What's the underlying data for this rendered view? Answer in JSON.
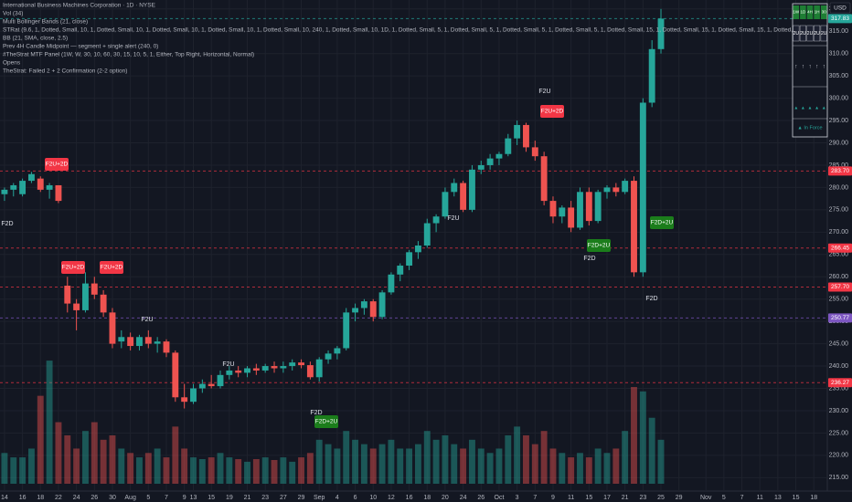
{
  "chart_data": {
    "type": "candlestick",
    "title": "International Business Machines Corporation · 1D · NYSE",
    "legend_lines": [
      "Vol (34)",
      "Multi Bollinger Bands (21, close)",
      "STRat (9.6, 1, Dotted, Small, 10, 1, Dotted, Small, 10, 1, Dotted, Small, 10, 1, Dotted, Small, 10, 1, Dotted, Small, 10, 240, 1, Dotted, Small, 10, 1D, 1, Dotted, Small, 5, 1, Dotted, Small, 5, 1, Dotted, Small, 5, 1, Dotted, Small, 5, 1, Dotted, Small, 15, 1, Dotted, Small, 15, 1, Dotted, Small, 15, 1, Dotted, Small, 5)",
      "BB (21, SMA, close, 2.5)",
      "Prev 4H Candle Midpoint — segment + single alert (240, 0)",
      "#TheStrat MTF Panel (1W, W, 30, 10, 60, 30, 15, 10, 5, 1, Either, Top Right, Horizontal, Normal)",
      "Opens",
      "TheStrat: Failed 2 + 2 Confirmation (2-2 option)"
    ],
    "currency": "USD",
    "x": [
      0,
      1,
      2,
      3,
      4,
      5,
      6,
      7,
      8,
      9,
      10,
      11,
      12,
      13,
      14,
      15,
      16,
      17,
      18,
      19,
      20,
      21,
      22,
      23,
      24,
      25,
      26,
      27,
      28,
      29,
      30,
      31,
      32,
      33,
      34,
      35,
      36,
      37,
      38,
      39,
      40,
      41,
      42,
      43,
      44,
      45,
      46,
      47,
      48,
      49,
      50,
      51,
      52,
      53,
      54,
      55,
      56,
      57,
      58,
      59,
      60,
      61,
      62,
      63,
      64,
      65,
      66,
      67,
      68,
      69,
      70,
      71,
      72,
      73
    ],
    "open": [
      278.5,
      279.5,
      278.5,
      281.5,
      282,
      279.5,
      280.5,
      258,
      254,
      252.5,
      258.5,
      256,
      252,
      245.5,
      246.5,
      244.5,
      246.5,
      245,
      245.5,
      243,
      233,
      232,
      235,
      236,
      235.5,
      238,
      239,
      238.5,
      239.5,
      239,
      240,
      239.5,
      240,
      240.8,
      240.2,
      237.5,
      241.5,
      242.8,
      244,
      252,
      253,
      254.5,
      251,
      256.5,
      260.5,
      262.5,
      265.5,
      267,
      272,
      273.5,
      279,
      281,
      275,
      284,
      285,
      286.5,
      287.5,
      291,
      294,
      289,
      287,
      277,
      273.5,
      275.5,
      271,
      279,
      272.5,
      279,
      280,
      279,
      281.5,
      261,
      299,
      311
    ],
    "high": [
      280,
      281,
      282,
      283.5,
      282.5,
      281,
      280.5,
      260,
      255,
      261,
      260,
      257,
      253,
      248,
      247.5,
      247,
      248,
      246.5,
      246,
      243.5,
      236,
      236,
      237,
      238,
      239,
      240,
      240,
      240,
      240.5,
      240.5,
      241,
      241,
      241.5,
      241.5,
      241,
      242,
      243.5,
      244.5,
      253,
      254,
      255,
      255,
      257,
      261,
      263,
      266,
      268,
      273,
      274,
      280,
      282,
      281.5,
      285,
      286,
      287.5,
      288,
      292,
      295,
      294.5,
      290.5,
      288,
      278,
      276,
      277,
      280,
      280,
      279.5,
      280.5,
      281,
      282,
      282.5,
      300,
      313,
      320
    ],
    "low": [
      277,
      278,
      278,
      281,
      279,
      277.5,
      276.5,
      252,
      248,
      252,
      255,
      251,
      244,
      244,
      243.5,
      243.5,
      244,
      243,
      242,
      232,
      230.5,
      231.5,
      234,
      235,
      235,
      237,
      237.5,
      237.5,
      238,
      238.5,
      238.5,
      238.5,
      239,
      239.5,
      237,
      236.5,
      240.5,
      241.5,
      243.5,
      250,
      251.5,
      250,
      250.5,
      256,
      259,
      261.5,
      264,
      266.5,
      270,
      273,
      278,
      274.5,
      274.5,
      283,
      284,
      285,
      287,
      289.5,
      288,
      286,
      276,
      272,
      272,
      270,
      270.5,
      271.5,
      272,
      277.5,
      278,
      278.5,
      260,
      260,
      298,
      310
    ],
    "close": [
      279.5,
      280.5,
      281.5,
      283,
      279.5,
      280.5,
      277,
      254,
      252.5,
      258.5,
      256,
      252,
      245,
      246.5,
      244.5,
      246.5,
      245,
      245.5,
      243,
      233,
      232,
      235,
      236,
      235.5,
      238,
      239,
      238.5,
      239.5,
      239,
      240,
      239.5,
      240,
      240.8,
      240.2,
      237.5,
      241.5,
      242.8,
      244,
      252,
      253,
      254.5,
      251,
      256.5,
      260.5,
      262.5,
      265.5,
      267,
      272,
      273.5,
      279,
      281,
      275,
      284,
      285,
      286.5,
      287.5,
      291,
      294,
      289,
      287,
      277,
      273.5,
      275.5,
      271,
      279,
      272.5,
      279,
      280,
      279,
      281.5,
      261,
      299,
      311,
      317.83
    ],
    "volume": [
      3.5,
      3,
      3,
      4,
      10,
      14,
      7,
      5.5,
      4,
      6,
      7,
      5,
      5.5,
      4,
      3.5,
      3,
      3.5,
      4,
      3,
      6.5,
      4,
      3,
      2.8,
      3,
      3.5,
      3,
      2.8,
      2.5,
      2.8,
      3,
      2.7,
      3,
      2.5,
      3,
      3.5,
      5,
      4.5,
      4,
      6,
      5,
      4.5,
      4,
      4.5,
      5,
      4,
      4,
      4.5,
      6,
      5,
      5.5,
      4.5,
      4,
      5,
      4,
      3.5,
      4,
      5.5,
      6.5,
      5.5,
      4.5,
      6,
      4,
      3.5,
      3,
      3.5,
      3,
      4,
      3.5,
      4,
      6,
      11,
      10.5,
      7.5,
      5
    ],
    "up_color": "#26a69a",
    "down_color": "#ef5350",
    "xlim": [
      -0.5,
      91.5
    ],
    "ylim": [
      212,
      322
    ],
    "volume_ylim": [
      0,
      55
    ],
    "grid": true,
    "yticks": [
      {
        "value": 215,
        "label": "215.00"
      },
      {
        "value": 220,
        "label": "220.00"
      },
      {
        "value": 225,
        "label": "225.00"
      },
      {
        "value": 230,
        "label": "230.00"
      },
      {
        "value": 235,
        "label": "235.00"
      },
      {
        "value": 240,
        "label": "240.00"
      },
      {
        "value": 245,
        "label": "245.00"
      },
      {
        "value": 250,
        "label": "250.00"
      },
      {
        "value": 255,
        "label": "255.00"
      },
      {
        "value": 260,
        "label": "260.00"
      },
      {
        "value": 265,
        "label": "265.00"
      },
      {
        "value": 270,
        "label": "270.00"
      },
      {
        "value": 275,
        "label": "275.00"
      },
      {
        "value": 280,
        "label": "280.00"
      },
      {
        "value": 285,
        "label": "285.00"
      },
      {
        "value": 290,
        "label": "290.00"
      },
      {
        "value": 295,
        "label": "295.00"
      },
      {
        "value": 300,
        "label": "300.00"
      },
      {
        "value": 305,
        "label": "305.00"
      },
      {
        "value": 310,
        "label": "310.00"
      },
      {
        "value": 315,
        "label": "315.00"
      },
      {
        "value": 320,
        "label": "320.00"
      }
    ],
    "xticks": [
      {
        "value": 0,
        "label": "14"
      },
      {
        "value": 2,
        "label": "16"
      },
      {
        "value": 4,
        "label": "18"
      },
      {
        "value": 6,
        "label": "22"
      },
      {
        "value": 8,
        "label": "24"
      },
      {
        "value": 10,
        "label": "26"
      },
      {
        "value": 12,
        "label": "30"
      },
      {
        "value": 14,
        "label": "Aug"
      },
      {
        "value": 16,
        "label": "5"
      },
      {
        "value": 18,
        "label": "7"
      },
      {
        "value": 20,
        "label": "9"
      },
      {
        "value": 21,
        "label": "13"
      },
      {
        "value": 23,
        "label": "15"
      },
      {
        "value": 25,
        "label": "19"
      },
      {
        "value": 27,
        "label": "21"
      },
      {
        "value": 29,
        "label": "23"
      },
      {
        "value": 31,
        "label": "27"
      },
      {
        "value": 33,
        "label": "29"
      },
      {
        "value": 35,
        "label": "Sep"
      },
      {
        "value": 37,
        "label": "4"
      },
      {
        "value": 39,
        "label": "6"
      },
      {
        "value": 41,
        "label": "10"
      },
      {
        "value": 43,
        "label": "12"
      },
      {
        "value": 45,
        "label": "16"
      },
      {
        "value": 47,
        "label": "18"
      },
      {
        "value": 49,
        "label": "20"
      },
      {
        "value": 51,
        "label": "24"
      },
      {
        "value": 53,
        "label": "26"
      },
      {
        "value": 55,
        "label": "Oct"
      },
      {
        "value": 57,
        "label": "3"
      },
      {
        "value": 59,
        "label": "7"
      },
      {
        "value": 61,
        "label": "9"
      },
      {
        "value": 63,
        "label": "11"
      },
      {
        "value": 65,
        "label": "15"
      },
      {
        "value": 67,
        "label": "17"
      },
      {
        "value": 69,
        "label": "21"
      },
      {
        "value": 71,
        "label": "23"
      },
      {
        "value": 73,
        "label": "25"
      },
      {
        "value": 75,
        "label": "29"
      },
      {
        "value": 78,
        "label": "Nov"
      },
      {
        "value": 80,
        "label": "5"
      },
      {
        "value": 82,
        "label": "7"
      },
      {
        "value": 84,
        "label": "11"
      },
      {
        "value": 86,
        "label": "13"
      },
      {
        "value": 88,
        "label": "15"
      },
      {
        "value": 90,
        "label": "18"
      }
    ],
    "price_labels": [
      {
        "value": 317.83,
        "label": "317.83",
        "color": "#26a69a"
      },
      {
        "value": 283.7,
        "label": "283.70",
        "color": "#f23645"
      },
      {
        "value": 266.45,
        "label": "266.45",
        "color": "#f23645"
      },
      {
        "value": 257.7,
        "label": "257.70",
        "color": "#f23645"
      },
      {
        "value": 250.77,
        "label": "250.77",
        "color": "#7e57c2"
      },
      {
        "value": 236.27,
        "label": "236.27",
        "color": "#f23645"
      }
    ],
    "annotations": [
      {
        "text": "F2D",
        "style": "plain"
      },
      {
        "text": "F2U+2D",
        "style": "red"
      },
      {
        "text": "F2U+2D",
        "style": "red"
      },
      {
        "text": "F2U+2D",
        "style": "red"
      },
      {
        "text": "F2U",
        "style": "plain"
      },
      {
        "text": "F2U",
        "style": "plain"
      },
      {
        "text": "F2D+2U",
        "style": "green"
      },
      {
        "text": "F2D",
        "style": "plain"
      },
      {
        "text": "F2U",
        "style": "plain"
      },
      {
        "text": "F2U",
        "style": "plain"
      },
      {
        "text": "F2U+2D",
        "style": "red"
      },
      {
        "text": "F2D+2U",
        "style": "green"
      },
      {
        "text": "F2D",
        "style": "plain"
      },
      {
        "text": "F2D+2U",
        "style": "green"
      },
      {
        "text": "F2D",
        "style": "plain"
      }
    ],
    "mtf_panel": {
      "timeframes": [
        "1W",
        "1D",
        "4H",
        "1H",
        "30"
      ],
      "states": [
        "2U",
        "2U",
        "2U",
        "2U",
        "2U"
      ],
      "arrows": [
        "↑",
        "↑",
        "↑",
        "↑",
        "↑"
      ],
      "triangles": [
        "▲",
        "▲",
        "▲",
        "▲",
        "▲"
      ],
      "footer": "▲ In Force"
    }
  }
}
